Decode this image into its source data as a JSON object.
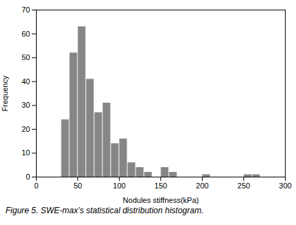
{
  "chart_data": {
    "type": "histogram",
    "caption": "Figure 5. SWE-max’s statistical distribution histogram.",
    "x_label": "Nodules stiffness(kPa)",
    "y_label": "Frequency",
    "bins": [
      0,
      10,
      20,
      30,
      40,
      50,
      60,
      70,
      80,
      90,
      100,
      110,
      120,
      130,
      140,
      150,
      160,
      170,
      180,
      190,
      200,
      210,
      220,
      230,
      240,
      250,
      260,
      270,
      280,
      290,
      300
    ],
    "values": [
      0,
      0,
      0,
      24,
      52,
      63,
      41,
      27,
      31,
      14,
      16,
      6,
      4,
      2,
      0,
      4,
      2,
      0,
      0,
      0,
      1,
      0,
      0,
      0,
      0,
      1,
      1,
      0,
      0,
      0
    ],
    "color": "#868686",
    "xlim": [
      0,
      300
    ],
    "ylim": [
      0,
      70
    ],
    "xticks": [
      0,
      50,
      100,
      150,
      200,
      250,
      300
    ],
    "yticks": [
      0,
      10,
      20,
      30,
      40,
      50,
      60,
      70
    ],
    "grid": false
  }
}
